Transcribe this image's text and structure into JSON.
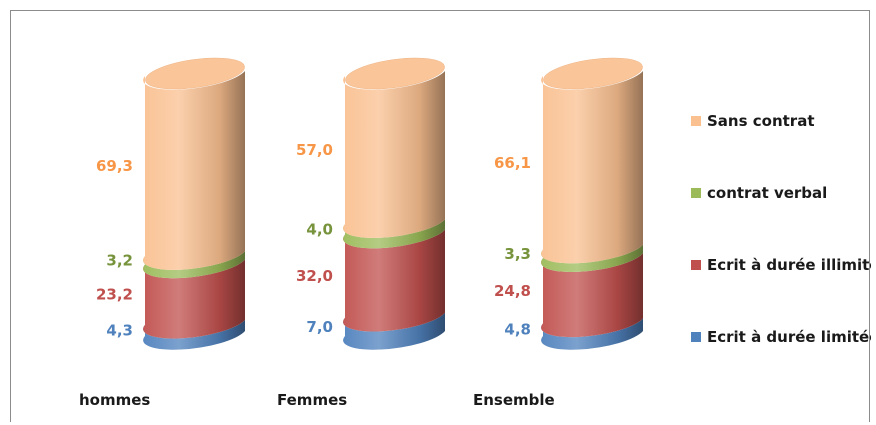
{
  "chart_data": {
    "type": "bar",
    "stacked": true,
    "style": "3d-cylinder",
    "categories": [
      "hommes",
      "Femmes",
      "Ensemble"
    ],
    "series": [
      {
        "name": "Ecrit à durée limitée",
        "color": "#4f81bd",
        "values": [
          4.3,
          7.0,
          4.8
        ],
        "labels": [
          "4,3",
          "7,0",
          "4,8"
        ],
        "label_color": "#4f81bd"
      },
      {
        "name": "Ecrit à durée illimitée",
        "color": "#c0504d",
        "values": [
          23.2,
          32.0,
          24.8
        ],
        "labels": [
          "23,2",
          "32,0",
          "24,8"
        ],
        "label_color": "#c0504d"
      },
      {
        "name": "contrat verbal",
        "color": "#9bbb59",
        "values": [
          3.2,
          4.0,
          3.3
        ],
        "labels": [
          "3,2",
          "4,0",
          "3,3"
        ],
        "label_color": "#77933c"
      },
      {
        "name": "Sans contrat",
        "color": "#fac090",
        "values": [
          69.3,
          57.0,
          66.1
        ],
        "labels": [
          "69,3",
          "57,0",
          "66,1"
        ],
        "label_color": "#f79646"
      }
    ],
    "legend_order": [
      3,
      2,
      1,
      0
    ],
    "legend_position": "right",
    "grid": false,
    "axes_visible": false
  }
}
